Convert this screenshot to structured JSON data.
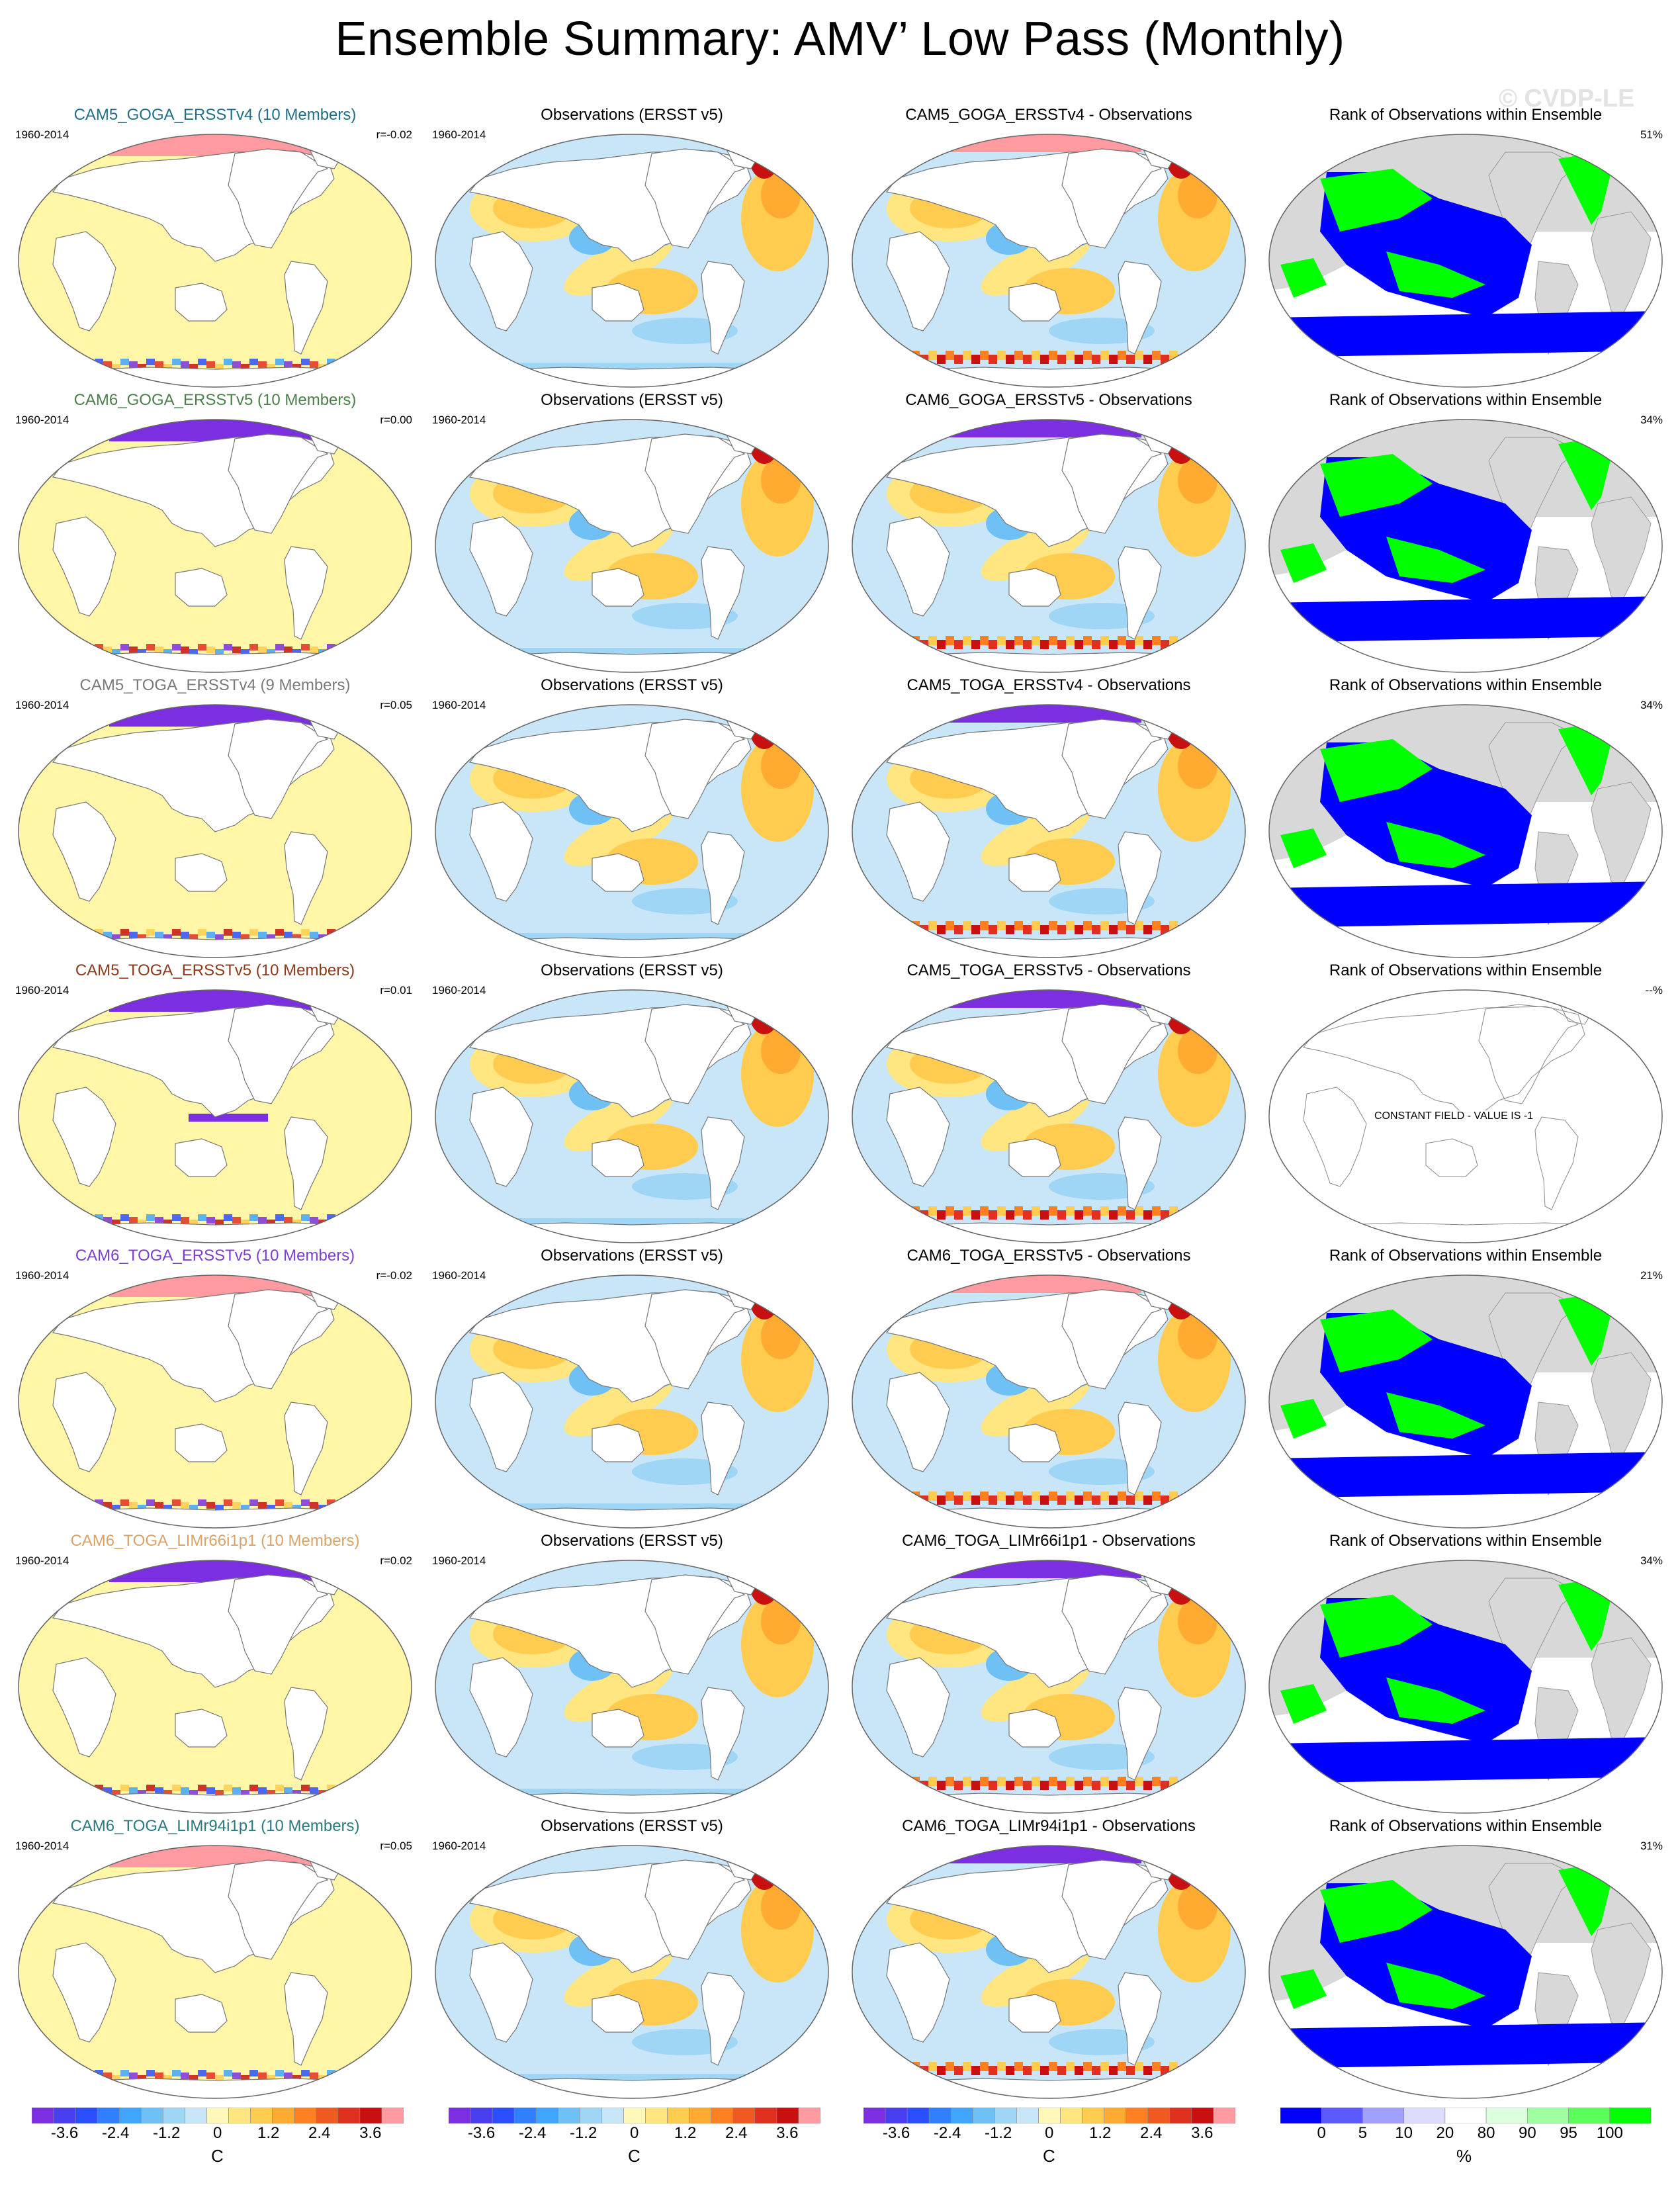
{
  "title": "Ensemble Summary: AMV’ Low Pass (Monthly)",
  "watermark": "© CVDP-LE",
  "rows": [
    {
      "model": "CAM5_GOGA_ERSSTv4 (10 Members)",
      "model_color": "#1f6f8b",
      "period": "1960-2014",
      "r": "r=-0.02",
      "obs_title": "Observations (ERSST v5)",
      "diff_title": "CAM5_GOGA_ERSSTv4 - Observations",
      "rank_title": "Rank of Observations within Ensemble",
      "rank_pct": "51%",
      "rank_constant": false
    },
    {
      "model": "CAM6_GOGA_ERSSTv5 (10 Members)",
      "model_color": "#4a7f4a",
      "period": "1960-2014",
      "r": "r=0.00",
      "obs_title": "Observations (ERSST v5)",
      "diff_title": "CAM6_GOGA_ERSSTv5 - Observations",
      "rank_title": "Rank of Observations within Ensemble",
      "rank_pct": "34%",
      "rank_constant": false
    },
    {
      "model": "CAM5_TOGA_ERSSTv4 (9 Members)",
      "model_color": "#7a7a7a",
      "period": "1960-2014",
      "r": "r=0.05",
      "obs_title": "Observations (ERSST v5)",
      "diff_title": "CAM5_TOGA_ERSSTv4 - Observations",
      "rank_title": "Rank of Observations within Ensemble",
      "rank_pct": "34%",
      "rank_constant": false
    },
    {
      "model": "CAM5_TOGA_ERSSTv5 (10 Members)",
      "model_color": "#8b3a1a",
      "period": "1960-2014",
      "r": "r=0.01",
      "obs_title": "Observations (ERSST v5)",
      "diff_title": "CAM5_TOGA_ERSSTv5 - Observations",
      "rank_title": "Rank of Observations within Ensemble",
      "rank_pct": "--%",
      "rank_constant": true,
      "constant_text": "CONSTANT FIELD - VALUE IS -1"
    },
    {
      "model": "CAM6_TOGA_ERSSTv5 (10 Members)",
      "model_color": "#7b3fd0",
      "period": "1960-2014",
      "r": "r=-0.02",
      "obs_title": "Observations (ERSST v5)",
      "diff_title": "CAM6_TOGA_ERSSTv5 - Observations",
      "rank_title": "Rank of Observations within Ensemble",
      "rank_pct": "21%",
      "rank_constant": false
    },
    {
      "model": "CAM6_TOGA_LIMr66i1p1 (10 Members)",
      "model_color": "#d9a36a",
      "period": "1960-2014",
      "r": "r=0.02",
      "obs_title": "Observations (ERSST v5)",
      "diff_title": "CAM6_TOGA_LIMr66i1p1 - Observations",
      "rank_title": "Rank of Observations within Ensemble",
      "rank_pct": "34%",
      "rank_constant": false
    },
    {
      "model": "CAM6_TOGA_LIMr94i1p1 (10 Members)",
      "model_color": "#2a7a80",
      "period": "1960-2014",
      "r": "r=0.05",
      "obs_title": "Observations (ERSST v5)",
      "diff_title": "CAM6_TOGA_LIMr94i1p1 - Observations",
      "rank_title": "Rank of Observations within Ensemble",
      "rank_pct": "31%",
      "rank_constant": false
    }
  ],
  "colorbars": {
    "temp": {
      "labels": [
        "-3.6",
        "-2.4",
        "-1.2",
        "0",
        "1.2",
        "2.4",
        "3.6"
      ],
      "unit": "C",
      "colors": [
        "#7b2fe0",
        "#4a3ff0",
        "#2b4fff",
        "#2f7fff",
        "#3fa5ff",
        "#6fc0f5",
        "#9fd5f5",
        "#c8e6f8",
        "#fff8b8",
        "#ffe680",
        "#ffcc50",
        "#ffaa30",
        "#ff8020",
        "#f05a20",
        "#e03020",
        "#c81010",
        "#ff9aa0"
      ]
    },
    "rank": {
      "labels": [
        "0",
        "5",
        "10",
        "20",
        "80",
        "90",
        "95",
        "100"
      ],
      "unit": "%",
      "colors": [
        "#0000ff",
        "#5a5aff",
        "#a0a0ff",
        "#dcdcff",
        "#ffffff",
        "#dcffdc",
        "#a0ffa0",
        "#5aff5a",
        "#00ff00"
      ]
    }
  }
}
